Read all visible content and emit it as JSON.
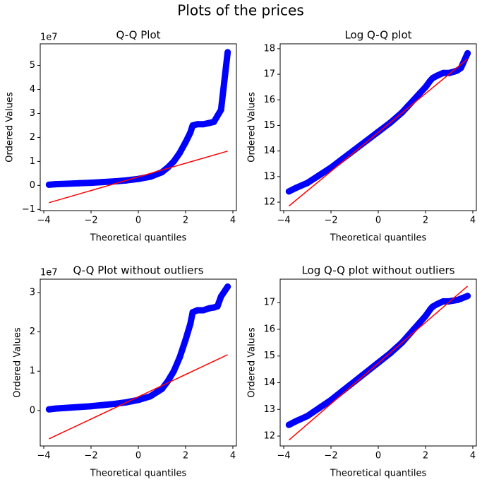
{
  "title": "Plots of the prices",
  "chart_data": [
    {
      "type": "scatter",
      "title": "Q-Q Plot",
      "xlabel": "Theoretical quantiles",
      "ylabel": "Ordered Values",
      "offset_label": "1e7",
      "x": [
        -3.78,
        -3.5,
        -3,
        -2.5,
        -2,
        -1.5,
        -1,
        -0.5,
        0,
        0.5,
        1,
        1.25,
        1.5,
        1.75,
        2,
        2.2,
        2.3,
        2.5,
        2.75,
        3,
        3.2,
        3.35,
        3.5,
        3.78
      ],
      "series": [
        {
          "color": "#0000ff",
          "values": [
            0.03,
            0.05,
            0.07,
            0.09,
            0.11,
            0.14,
            0.17,
            0.21,
            0.27,
            0.36,
            0.55,
            0.75,
            1.0,
            1.35,
            1.8,
            2.2,
            2.5,
            2.55,
            2.55,
            2.6,
            2.65,
            2.9,
            3.15,
            5.55
          ]
        }
      ],
      "fit_line": {
        "color": "#ff0000",
        "x": [
          -3.78,
          3.78
        ],
        "values": [
          -0.72,
          1.43
        ]
      },
      "xlim": [
        -4.15,
        4.15
      ],
      "xticks": [
        {
          "value": -4,
          "label": "−4"
        },
        {
          "value": -2,
          "label": "−2"
        },
        0,
        2,
        4
      ],
      "ylim": [
        -1.05,
        5.9
      ],
      "yticks": [
        {
          "value": -1,
          "label": "−1"
        },
        0,
        1,
        2,
        3,
        4,
        5
      ]
    },
    {
      "type": "scatter",
      "title": "Log Q-Q plot",
      "xlabel": "Theoretical quantiles",
      "ylabel": "Ordered Values",
      "x": [
        -3.78,
        -3.5,
        -3,
        -2.5,
        -2,
        -1.5,
        -1,
        -0.5,
        0,
        0.5,
        1,
        1.25,
        1.5,
        1.75,
        2,
        2.2,
        2.3,
        2.5,
        2.75,
        3,
        3.2,
        3.35,
        3.5,
        3.78
      ],
      "series": [
        {
          "color": "#0000ff",
          "values": [
            12.42,
            12.55,
            12.75,
            13.05,
            13.35,
            13.7,
            14.05,
            14.4,
            14.75,
            15.1,
            15.5,
            15.75,
            16.0,
            16.25,
            16.5,
            16.75,
            16.85,
            16.95,
            17.05,
            17.05,
            17.1,
            17.15,
            17.25,
            17.82
          ]
        }
      ],
      "fit_line": {
        "color": "#ff0000",
        "x": [
          -3.78,
          3.78
        ],
        "values": [
          11.85,
          17.6
        ]
      },
      "xlim": [
        -4.15,
        4.15
      ],
      "xticks": [
        {
          "value": -4,
          "label": "−4"
        },
        {
          "value": -2,
          "label": "−2"
        },
        0,
        2,
        4
      ],
      "ylim": [
        11.67,
        18.19
      ],
      "yticks": [
        12,
        13,
        14,
        15,
        16,
        17,
        18
      ]
    },
    {
      "type": "scatter",
      "title": "Q-Q Plot without outliers",
      "xlabel": "Theoretical quantiles",
      "ylabel": "Ordered Values",
      "offset_label": "1e7",
      "x": [
        -3.78,
        -3.5,
        -3,
        -2.5,
        -2,
        -1.5,
        -1,
        -0.5,
        0,
        0.5,
        1,
        1.25,
        1.5,
        1.75,
        2,
        2.2,
        2.3,
        2.5,
        2.75,
        3,
        3.2,
        3.35,
        3.5,
        3.78
      ],
      "series": [
        {
          "color": "#0000ff",
          "values": [
            0.03,
            0.05,
            0.07,
            0.09,
            0.11,
            0.14,
            0.17,
            0.21,
            0.27,
            0.36,
            0.55,
            0.75,
            1.0,
            1.35,
            1.8,
            2.2,
            2.5,
            2.55,
            2.55,
            2.6,
            2.62,
            2.65,
            2.9,
            3.15
          ]
        }
      ],
      "fit_line": {
        "color": "#ff0000",
        "x": [
          -3.78,
          3.78
        ],
        "values": [
          -0.72,
          1.42
        ]
      },
      "xlim": [
        -4.15,
        4.15
      ],
      "xticks": [
        {
          "value": -4,
          "label": "−4"
        },
        {
          "value": -2,
          "label": "−2"
        },
        0,
        2,
        4
      ],
      "ylim": [
        -0.9,
        3.34
      ],
      "yticks": [
        0,
        1,
        2,
        3
      ]
    },
    {
      "type": "scatter",
      "title": "Log Q-Q plot without outliers",
      "xlabel": "Theoretical quantiles",
      "ylabel": "Ordered Values",
      "x": [
        -3.78,
        -3.5,
        -3,
        -2.5,
        -2,
        -1.5,
        -1,
        -0.5,
        0,
        0.5,
        1,
        1.25,
        1.5,
        1.75,
        2,
        2.2,
        2.3,
        2.5,
        2.75,
        3,
        3.2,
        3.35,
        3.5,
        3.78
      ],
      "series": [
        {
          "color": "#0000ff",
          "values": [
            12.42,
            12.55,
            12.75,
            13.05,
            13.35,
            13.7,
            14.05,
            14.4,
            14.75,
            15.1,
            15.5,
            15.75,
            16.0,
            16.25,
            16.5,
            16.75,
            16.85,
            16.95,
            17.05,
            17.05,
            17.08,
            17.1,
            17.15,
            17.25
          ]
        }
      ],
      "fit_line": {
        "color": "#ff0000",
        "x": [
          -3.78,
          3.78
        ],
        "values": [
          11.85,
          17.62
        ]
      },
      "xlim": [
        -4.15,
        4.15
      ],
      "xticks": [
        {
          "value": -4,
          "label": "−4"
        },
        {
          "value": -2,
          "label": "−2"
        },
        0,
        2,
        4
      ],
      "ylim": [
        11.63,
        17.88
      ],
      "yticks": [
        12,
        13,
        14,
        15,
        16,
        17
      ]
    }
  ]
}
